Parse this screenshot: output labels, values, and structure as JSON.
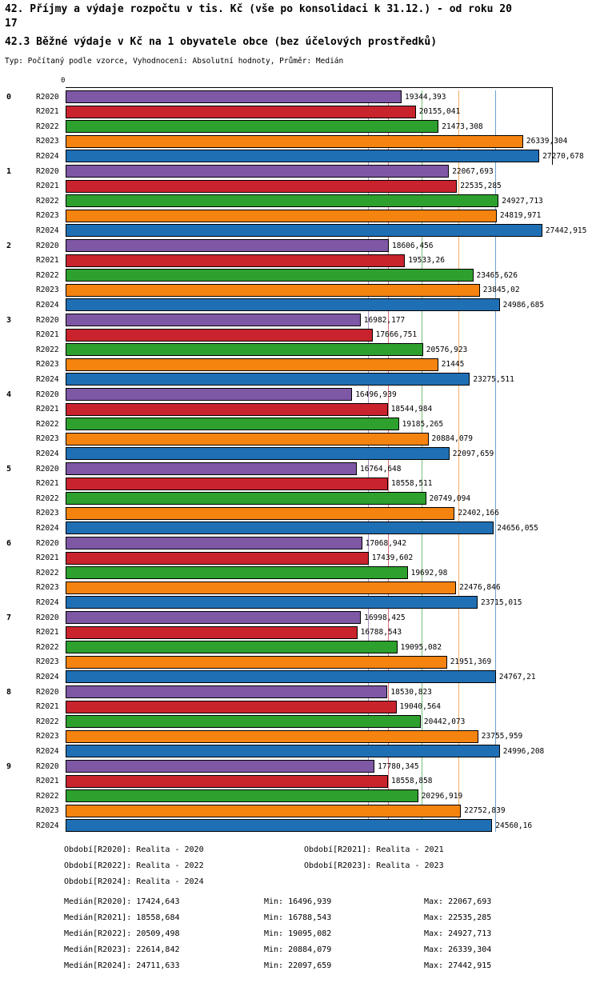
{
  "header": {
    "title_line1": "42. Příjmy a výdaje rozpočtu v tis. Kč (vše po konsolidaci k 31.12.) - od roku 20",
    "title_line2": "17",
    "subtitle": "42.3 Běžné výdaje v Kč na 1 obyvatele obce (bez účelových prostředků)",
    "meta": "Typ: Počítaný podle vzorce, Vyhodnocení: Absolutní hodnoty, Průměr: Medián"
  },
  "chart_data": {
    "type": "bar",
    "orientation": "horizontal",
    "title": "42.3 Běžné výdaje v Kč na 1 obyvatele obce (bez účelových prostředků)",
    "axis_origin_label": "0",
    "axis_max": 28000,
    "grid": "median-lines-per-series",
    "legend_position": "bottom",
    "categories": [
      "0",
      "1",
      "2",
      "3",
      "4",
      "5",
      "6",
      "7",
      "8",
      "9"
    ],
    "series": [
      {
        "name": "R2020",
        "color": "#7E57A5",
        "median": 17424.643,
        "labels": [
          "19344,393",
          "22067,693",
          "18606,456",
          "16982,177",
          "16496,939",
          "16764,648",
          "17068,942",
          "16998,425",
          "18530,823",
          "17780,345"
        ]
      },
      {
        "name": "R2021",
        "color": "#C9232D",
        "median": 18558.684,
        "labels": [
          "20155,041",
          "22535,285",
          "19533,26",
          "17666,751",
          "18544,984",
          "18558,511",
          "17439,602",
          "16788,543",
          "19040,564",
          "18558,858"
        ]
      },
      {
        "name": "R2022",
        "color": "#2DA02D",
        "median": 20509.498,
        "labels": [
          "21473,308",
          "24927,713",
          "23465,626",
          "20576,923",
          "19185,265",
          "20749,094",
          "19692,98",
          "19095,082",
          "20442,073",
          "20296,919"
        ]
      },
      {
        "name": "R2023",
        "color": "#F5830F",
        "median": 22614.842,
        "labels": [
          "26339,304",
          "24819,971",
          "23845,02",
          "21445",
          "20884,079",
          "22402,166",
          "22476,846",
          "21951,369",
          "23755,959",
          "22752,839"
        ]
      },
      {
        "name": "R2024",
        "color": "#1F6FB5",
        "median": 24711.633,
        "labels": [
          "27270,678",
          "27442,915",
          "24986,685",
          "23275,511",
          "22097,659",
          "24656,055",
          "23715,015",
          "24767,21",
          "24996,208",
          "24560,16"
        ]
      }
    ]
  },
  "legend": [
    "Období[R2020]: Realita - 2020",
    "Období[R2021]: Realita - 2021",
    "Období[R2022]: Realita - 2022",
    "Období[R2023]: Realita - 2023",
    "Období[R2024]: Realita - 2024"
  ],
  "stats": [
    {
      "median": "Medián[R2020]: 17424,643",
      "min": "Min: 16496,939",
      "max": "Max: 22067,693"
    },
    {
      "median": "Medián[R2021]: 18558,684",
      "min": "Min: 16788,543",
      "max": "Max: 22535,285"
    },
    {
      "median": "Medián[R2022]: 20509,498",
      "min": "Min: 19095,082",
      "max": "Max: 24927,713"
    },
    {
      "median": "Medián[R2023]: 22614,842",
      "min": "Min: 20884,079",
      "max": "Max: 26339,304"
    },
    {
      "median": "Medián[R2024]: 24711,633",
      "min": "Min: 22097,659",
      "max": "Max: 27442,915"
    }
  ]
}
